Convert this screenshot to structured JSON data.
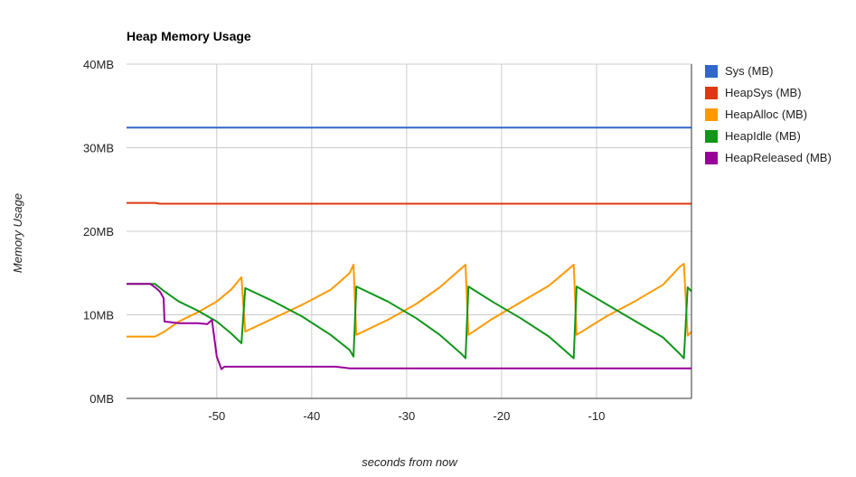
{
  "chart_data": {
    "type": "line",
    "title": "Heap Memory Usage",
    "xlabel": "seconds from now",
    "ylabel": "Memory Usage",
    "xlim": [
      -59.5,
      0
    ],
    "ylim": [
      0,
      40
    ],
    "x_ticks": [
      -50,
      -40,
      -30,
      -20,
      -10
    ],
    "y_ticks": [
      {
        "value": 0,
        "label": "0MB"
      },
      {
        "value": 10,
        "label": "10MB"
      },
      {
        "value": 20,
        "label": "20MB"
      },
      {
        "value": 30,
        "label": "30MB"
      },
      {
        "value": 40,
        "label": "40MB"
      }
    ],
    "grid": true,
    "legend_position": "right",
    "series": [
      {
        "name": "Sys (MB)",
        "color": "#3366cc",
        "x": [
          -59.5,
          0
        ],
        "y": [
          32.4,
          32.4
        ]
      },
      {
        "name": "HeapSys (MB)",
        "color": "#dc3912",
        "x": [
          -59.5,
          -56.5,
          -56,
          0
        ],
        "y": [
          23.4,
          23.4,
          23.3,
          23.3
        ]
      },
      {
        "name": "HeapAlloc (MB)",
        "color": "#ff9900",
        "x": [
          -59.5,
          -56.5,
          -55.5,
          -54,
          -52,
          -50,
          -48.5,
          -47.4,
          -47,
          -44,
          -41,
          -38,
          -36,
          -35.6,
          -35.3,
          -32,
          -29,
          -26.5,
          -24.2,
          -23.8,
          -23.5,
          -21,
          -18,
          -15,
          -12.8,
          -12.4,
          -12.1,
          -9,
          -6,
          -3,
          -1.2,
          -0.8,
          -0.4,
          0
        ],
        "y": [
          7.4,
          7.4,
          8.0,
          9.2,
          10.3,
          11.6,
          13.0,
          14.5,
          8.0,
          9.6,
          11.2,
          13.0,
          15.0,
          16.0,
          7.6,
          9.4,
          11.3,
          13.3,
          15.6,
          16.0,
          7.6,
          9.5,
          11.5,
          13.5,
          15.6,
          16.0,
          7.6,
          9.8,
          11.6,
          13.6,
          15.8,
          16.1,
          7.5,
          8.0
        ]
      },
      {
        "name": "HeapIdle (MB)",
        "color": "#109618",
        "x": [
          -59.5,
          -56.5,
          -55.5,
          -54,
          -52,
          -50,
          -48.5,
          -47.4,
          -47,
          -44,
          -41,
          -38,
          -36,
          -35.6,
          -35.3,
          -32,
          -29,
          -26.5,
          -24.2,
          -23.8,
          -23.5,
          -21,
          -18,
          -15,
          -12.8,
          -12.4,
          -12.1,
          -9,
          -6,
          -3,
          -1.2,
          -0.8,
          -0.4,
          0
        ],
        "y": [
          13.7,
          13.7,
          12.8,
          11.6,
          10.5,
          9.2,
          7.8,
          6.6,
          13.2,
          11.6,
          9.8,
          7.6,
          5.8,
          5.0,
          13.4,
          11.6,
          9.6,
          7.6,
          5.3,
          4.8,
          13.4,
          11.6,
          9.6,
          7.4,
          5.2,
          4.8,
          13.4,
          11.3,
          9.3,
          7.3,
          5.3,
          4.8,
          13.3,
          12.8
        ]
      },
      {
        "name": "HeapReleased (MB)",
        "color": "#990099",
        "x": [
          -59.5,
          -57,
          -56.5,
          -56,
          -55.6,
          -55.5,
          -54,
          -52,
          -51,
          -50.5,
          -50,
          -49.5,
          -49.2,
          -45,
          -37.5,
          -36,
          -30,
          -20,
          -10,
          0
        ],
        "y": [
          13.7,
          13.7,
          13.3,
          12.8,
          12.0,
          9.2,
          9.0,
          9.0,
          8.9,
          9.4,
          5.0,
          3.5,
          3.8,
          3.8,
          3.8,
          3.6,
          3.6,
          3.6,
          3.6,
          3.6
        ]
      }
    ]
  }
}
